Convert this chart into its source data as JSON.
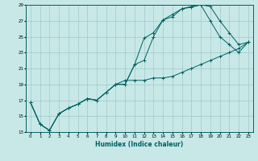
{
  "xlabel": "Humidex (Indice chaleur)",
  "ylabel": "",
  "bg_color": "#c8e8e8",
  "grid_color": "#a0c8c8",
  "line_color": "#006060",
  "xlim": [
    -0.5,
    23.5
  ],
  "ylim": [
    13,
    29
  ],
  "yticks": [
    13,
    15,
    17,
    19,
    21,
    23,
    25,
    27,
    29
  ],
  "xticks": [
    0,
    1,
    2,
    3,
    4,
    5,
    6,
    7,
    8,
    9,
    10,
    11,
    12,
    13,
    14,
    15,
    16,
    17,
    18,
    19,
    20,
    21,
    22,
    23
  ],
  "lines": [
    {
      "x": [
        0,
        1,
        2,
        3,
        4,
        5,
        6,
        7,
        8,
        9,
        10,
        11,
        12,
        13,
        14,
        15,
        16,
        17,
        18,
        19,
        20,
        21,
        22,
        23
      ],
      "y": [
        16.7,
        14.0,
        13.2,
        15.3,
        16.0,
        16.5,
        17.2,
        17.0,
        18.0,
        19.0,
        19.0,
        21.5,
        24.8,
        25.5,
        27.1,
        27.5,
        28.5,
        28.7,
        29.0,
        28.8,
        27.0,
        25.5,
        24.0,
        24.3
      ],
      "marker": "+"
    },
    {
      "x": [
        0,
        1,
        2,
        3,
        4,
        5,
        6,
        7,
        8,
        9,
        10,
        11,
        12,
        13,
        14,
        15,
        16,
        17,
        18,
        19,
        20,
        21,
        22,
        23
      ],
      "y": [
        16.7,
        14.0,
        13.2,
        15.3,
        16.0,
        16.5,
        17.2,
        17.0,
        18.0,
        19.0,
        19.0,
        21.5,
        22.0,
        25.0,
        27.1,
        27.8,
        28.5,
        28.8,
        29.0,
        27.0,
        25.0,
        24.0,
        23.0,
        24.3
      ],
      "marker": "+"
    },
    {
      "x": [
        0,
        1,
        2,
        3,
        4,
        5,
        6,
        7,
        8,
        9,
        10,
        11,
        12,
        13,
        14,
        15,
        16,
        17,
        18,
        19,
        20,
        21,
        22,
        23
      ],
      "y": [
        16.7,
        14.0,
        13.2,
        15.3,
        16.0,
        16.5,
        17.2,
        17.0,
        18.0,
        19.0,
        19.5,
        19.5,
        19.5,
        19.8,
        19.8,
        20.0,
        20.5,
        21.0,
        21.5,
        22.0,
        22.5,
        23.0,
        23.5,
        24.3
      ],
      "marker": "+"
    }
  ]
}
